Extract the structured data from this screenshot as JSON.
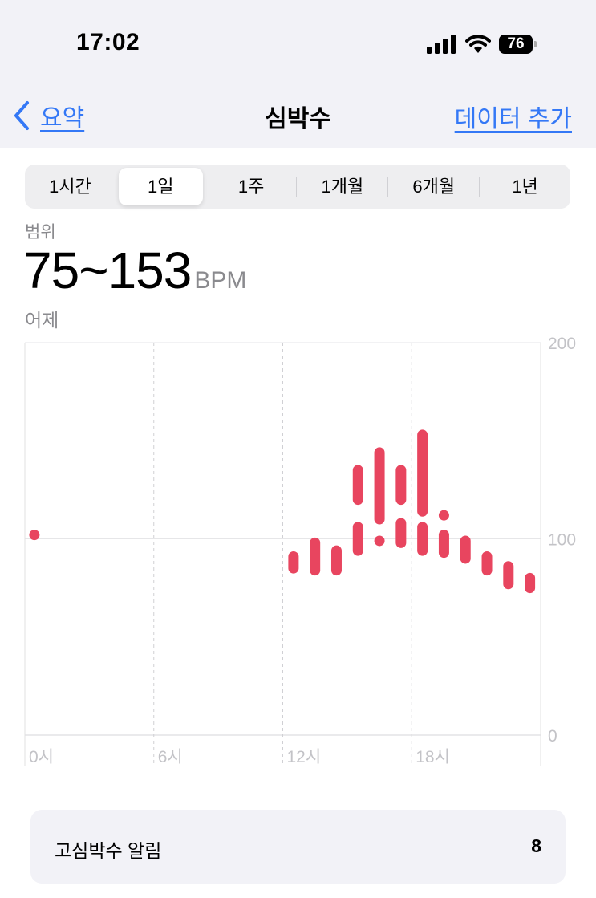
{
  "status_bar": {
    "time": "17:02",
    "battery": "76",
    "icons": [
      "cellular-signal-icon",
      "wifi-icon",
      "battery-icon"
    ]
  },
  "nav": {
    "back_label": "요약",
    "title": "심박수",
    "add_label": "데이터 추가"
  },
  "segments": [
    {
      "label": "1시간",
      "active": false
    },
    {
      "label": "1일",
      "active": true
    },
    {
      "label": "1주",
      "active": false
    },
    {
      "label": "1개월",
      "active": false
    },
    {
      "label": "6개월",
      "active": false
    },
    {
      "label": "1년",
      "active": false
    }
  ],
  "summary": {
    "label": "범위",
    "value": "75~153",
    "unit": "BPM",
    "date": "어제"
  },
  "chart_data": {
    "type": "range-bar",
    "x_ticks": [
      "0시",
      "6시",
      "12시",
      "18시"
    ],
    "x_range_hours": [
      0,
      24
    ],
    "y_ticks": [
      "200",
      "100",
      "0"
    ],
    "ylim": [
      0,
      200
    ],
    "grid": true,
    "color": "#e8455f",
    "ranges": [
      {
        "hour": 0,
        "low": 102,
        "high": 102
      },
      {
        "hour": 12,
        "low": 85,
        "high": 91
      },
      {
        "hour": 13,
        "low": 84,
        "high": 98
      },
      {
        "hour": 14,
        "low": 84,
        "high": 94
      },
      {
        "hour": 15,
        "low": 94,
        "high": 106
      },
      {
        "hour": 15,
        "low": 120,
        "high": 135
      },
      {
        "hour": 16,
        "low": 99,
        "high": 99
      },
      {
        "hour": 16,
        "low": 110,
        "high": 144
      },
      {
        "hour": 17,
        "low": 98,
        "high": 108
      },
      {
        "hour": 17,
        "low": 120,
        "high": 135
      },
      {
        "hour": 18,
        "low": 94,
        "high": 106
      },
      {
        "hour": 18,
        "low": 114,
        "high": 153
      },
      {
        "hour": 19,
        "low": 93,
        "high": 102
      },
      {
        "hour": 19,
        "low": 112,
        "high": 112
      },
      {
        "hour": 20,
        "low": 90,
        "high": 99
      },
      {
        "hour": 21,
        "low": 84,
        "high": 91
      },
      {
        "hour": 22,
        "low": 77,
        "high": 86
      },
      {
        "hour": 23,
        "low": 75,
        "high": 80
      }
    ]
  },
  "alert": {
    "label": "고심박수 알림",
    "count": "8"
  }
}
